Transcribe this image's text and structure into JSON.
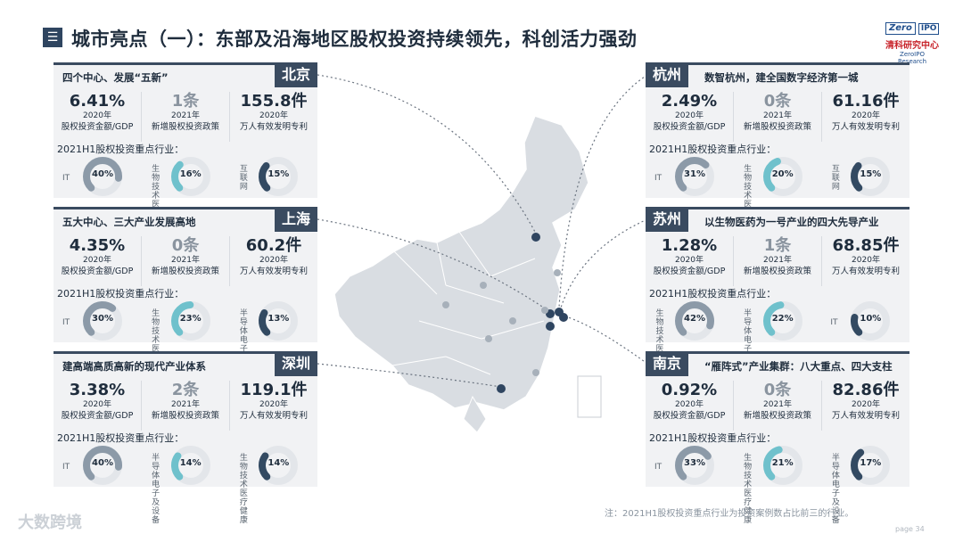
{
  "header": {
    "menu_icon": "menu-icon",
    "title": "城市亮点（一）：东部及沿海地区股权投资持续领先，科创活力强劲",
    "logo": {
      "box": "Zero",
      "ipo": "IPO",
      "cn": "清科研究中心",
      "en": "ZeroIPO Research"
    }
  },
  "cities": [
    {
      "name": "北京",
      "headline": "四个中心、发展“五新”",
      "stats": [
        {
          "value": "6.41%",
          "year": "2020年",
          "desc": "股权投资金额/GDP",
          "muted": false
        },
        {
          "value": "1条",
          "year": "2021年",
          "desc": "新增股权投资政策",
          "muted": true
        },
        {
          "value": "155.8件",
          "year": "2020年",
          "desc": "万人有效发明专利",
          "muted": false
        }
      ],
      "ind_title": "2021H1股权投资重点行业：",
      "industries": [
        {
          "label": "IT",
          "pct": "40%",
          "value": 40,
          "color": "#8c9aa8"
        },
        {
          "label": "生物技术医疗健康",
          "pct": "16%",
          "value": 16,
          "color": "#6fc1cc"
        },
        {
          "label": "互联网",
          "pct": "15%",
          "value": 15,
          "color": "#334a62"
        }
      ]
    },
    {
      "name": "上海",
      "headline": "五大中心、三大产业发展高地",
      "stats": [
        {
          "value": "4.35%",
          "year": "2020年",
          "desc": "股权投资金额/GDP",
          "muted": false
        },
        {
          "value": "0条",
          "year": "2021年",
          "desc": "新增股权投资政策",
          "muted": true
        },
        {
          "value": "60.2件",
          "year": "2020年",
          "desc": "万人有效发明专利",
          "muted": false
        }
      ],
      "ind_title": "2021H1股权投资重点行业：",
      "industries": [
        {
          "label": "IT",
          "pct": "30%",
          "value": 30,
          "color": "#8c9aa8"
        },
        {
          "label": "生物技术医疗健康",
          "pct": "23%",
          "value": 23,
          "color": "#6fc1cc"
        },
        {
          "label": "半导体电子及设备",
          "pct": "13%",
          "value": 13,
          "color": "#334a62"
        }
      ]
    },
    {
      "name": "深圳",
      "headline": "建高端高质高新的现代产业体系",
      "stats": [
        {
          "value": "3.38%",
          "year": "2020年",
          "desc": "股权投资金额/GDP",
          "muted": false
        },
        {
          "value": "2条",
          "year": "2021年",
          "desc": "新增股权投资政策",
          "muted": true
        },
        {
          "value": "119.1件",
          "year": "2020年",
          "desc": "万人有效发明专利",
          "muted": false
        }
      ],
      "ind_title": "2021H1股权投资重点行业：",
      "industries": [
        {
          "label": "IT",
          "pct": "40%",
          "value": 40,
          "color": "#8c9aa8"
        },
        {
          "label": "半导体电子及设备",
          "pct": "14%",
          "value": 14,
          "color": "#6fc1cc"
        },
        {
          "label": "生物技术医疗健康",
          "pct": "14%",
          "value": 14,
          "color": "#334a62"
        }
      ]
    },
    {
      "name": "杭州",
      "headline": "数智杭州，建全国数字经济第一城",
      "stats": [
        {
          "value": "2.49%",
          "year": "2020年",
          "desc": "股权投资金额/GDP",
          "muted": false
        },
        {
          "value": "0条",
          "year": "2021年",
          "desc": "新增股权投资政策",
          "muted": true
        },
        {
          "value": "61.16件",
          "year": "2020年",
          "desc": "万人有效发明专利",
          "muted": false
        }
      ],
      "ind_title": "2021H1股权投资重点行业：",
      "industries": [
        {
          "label": "IT",
          "pct": "31%",
          "value": 31,
          "color": "#8c9aa8"
        },
        {
          "label": "生物技术医疗健康",
          "pct": "20%",
          "value": 20,
          "color": "#6fc1cc"
        },
        {
          "label": "互联网",
          "pct": "15%",
          "value": 15,
          "color": "#334a62"
        }
      ]
    },
    {
      "name": "苏州",
      "headline": "以生物医药为一号产业的四大先导产业",
      "stats": [
        {
          "value": "1.28%",
          "year": "2020年",
          "desc": "股权投资金额/GDP",
          "muted": false
        },
        {
          "value": "1条",
          "year": "2021年",
          "desc": "新增股权投资政策",
          "muted": true
        },
        {
          "value": "68.85件",
          "year": "2020年",
          "desc": "万人有效发明专利",
          "muted": false
        }
      ],
      "ind_title": "2021H1股权投资重点行业：",
      "industries": [
        {
          "label": "生物技术医疗健康",
          "pct": "42%",
          "value": 42,
          "color": "#8c9aa8"
        },
        {
          "label": "半导体电子及设备",
          "pct": "22%",
          "value": 22,
          "color": "#6fc1cc"
        },
        {
          "label": "IT",
          "pct": "10%",
          "value": 10,
          "color": "#334a62"
        }
      ]
    },
    {
      "name": "南京",
      "headline": "“雁阵式”产业集群：八大重点、四大支柱",
      "stats": [
        {
          "value": "0.92%",
          "year": "2020年",
          "desc": "股权投资金额/GDP",
          "muted": false
        },
        {
          "value": "0条",
          "year": "2021年",
          "desc": "新增股权投资政策",
          "muted": true
        },
        {
          "value": "82.86件",
          "year": "2020年",
          "desc": "万人有效发明专利",
          "muted": false
        }
      ],
      "ind_title": "2021H1股权投资重点行业：",
      "industries": [
        {
          "label": "IT",
          "pct": "33%",
          "value": 33,
          "color": "#8c9aa8"
        },
        {
          "label": "生物技术医疗健康",
          "pct": "21%",
          "value": 21,
          "color": "#6fc1cc"
        },
        {
          "label": "半导体电子及设备",
          "pct": "17%",
          "value": 17,
          "color": "#334a62"
        }
      ]
    }
  ],
  "note": "注：2021H1股权投资重点行业为投资案例数占比前三的行业。",
  "page": "page  34",
  "watermark": "大数跨境",
  "colors": {
    "dark": "#3a4b60",
    "teal": "#6fc1cc",
    "gray": "#8c9aa8",
    "panel": "#f1f2f4"
  }
}
